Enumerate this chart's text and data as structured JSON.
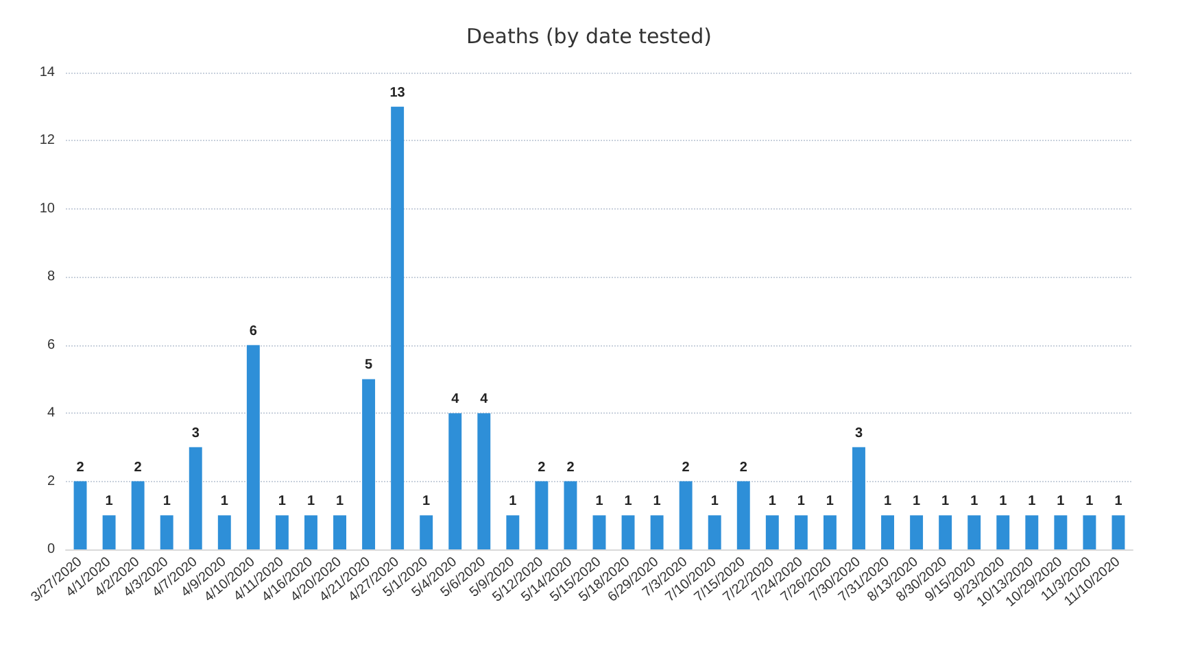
{
  "chart_data": {
    "type": "bar",
    "title": "Deaths (by date tested)",
    "categories": [
      "3/27/2020",
      "4/1/2020",
      "4/2/2020",
      "4/3/2020",
      "4/7/2020",
      "4/9/2020",
      "4/10/2020",
      "4/11/2020",
      "4/16/2020",
      "4/20/2020",
      "4/21/2020",
      "4/27/2020",
      "5/1/2020",
      "5/4/2020",
      "5/6/2020",
      "5/9/2020",
      "5/12/2020",
      "5/14/2020",
      "5/15/2020",
      "5/18/2020",
      "6/29/2020",
      "7/3/2020",
      "7/10/2020",
      "7/15/2020",
      "7/22/2020",
      "7/24/2020",
      "7/26/2020",
      "7/30/2020",
      "7/31/2020",
      "8/13/2020",
      "8/30/2020",
      "9/15/2020",
      "9/23/2020",
      "10/13/2020",
      "10/29/2020",
      "11/3/2020",
      "11/10/2020"
    ],
    "values": [
      2,
      1,
      2,
      1,
      3,
      1,
      6,
      1,
      1,
      1,
      5,
      13,
      1,
      4,
      4,
      1,
      2,
      2,
      1,
      1,
      1,
      2,
      1,
      2,
      1,
      1,
      1,
      3,
      1,
      1,
      1,
      1,
      1,
      1,
      1,
      1,
      1
    ],
    "color": "#2e8fd8",
    "ylim": [
      0,
      14
    ],
    "yticks": [
      0,
      2,
      4,
      6,
      8,
      10,
      12,
      14
    ],
    "grid": "y",
    "data_labels": true
  }
}
